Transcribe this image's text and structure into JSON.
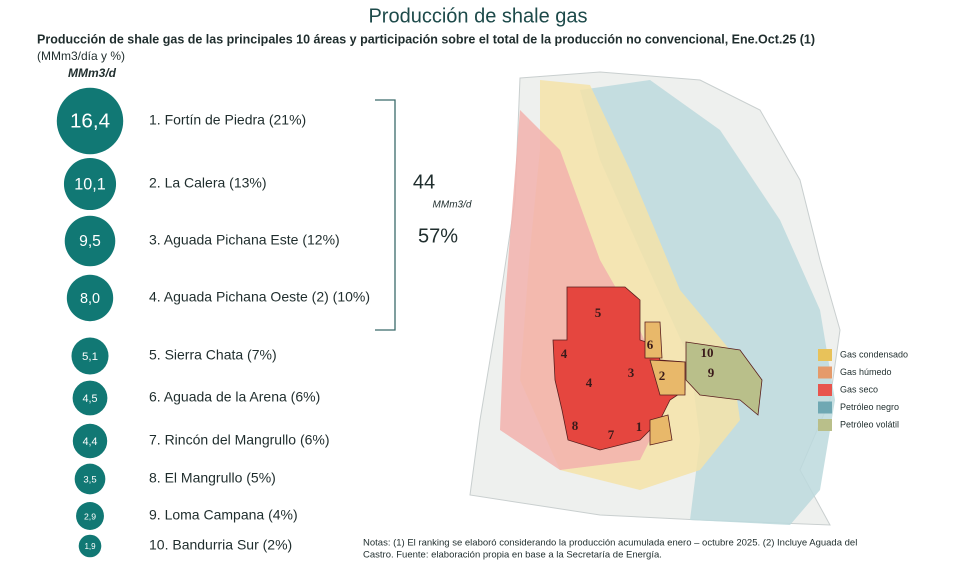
{
  "chart_data": {
    "type": "bubble",
    "title": "Producción de shale gas",
    "subtitle": "Producción de shale gas de las principales 10 áreas y participación sobre el total de la producción no convencional, Ene.Oct.25 (1)",
    "unit": "(MMm3/día y %)",
    "size_label": "MMm3/d",
    "color": "#117874",
    "categories": [
      "1. Fortín de Piedra (21%)",
      "2. La Calera (13%)",
      "3. Aguada Pichana Este (12%)",
      "4. Aguada Pichana Oeste (2) (10%)",
      "5. Sierra Chata (7%)",
      "6. Aguada de la Arena (6%)",
      "7. Rincón del Mangrullo (6%)",
      "8. El Mangrullo (5%)",
      "9. Loma Campana (4%)",
      "10. Bandurria Sur (2%)"
    ],
    "values": [
      16.4,
      10.1,
      9.5,
      8.0,
      5.1,
      4.5,
      4.4,
      3.5,
      2.9,
      1.9
    ],
    "value_labels": [
      "16,4",
      "10,1",
      "9,5",
      "8,0",
      "5,1",
      "4,5",
      "4,4",
      "3,5",
      "2,9",
      "1,9"
    ],
    "summary": {
      "value": "44",
      "unit": "MMm3/d",
      "share": "57%"
    }
  },
  "map": {
    "labels": [
      "5",
      "6",
      "10",
      "4",
      "3",
      "2",
      "9",
      "4",
      "8",
      "7",
      "1"
    ],
    "legend": [
      {
        "name": "Gas condensado",
        "color": "#e8c25a"
      },
      {
        "name": "Gas húmedo",
        "color": "#e59a6a"
      },
      {
        "name": "Gas seco",
        "color": "#e8554e"
      },
      {
        "name": "Petróleo negro",
        "color": "#6fa8b3"
      },
      {
        "name": "Petróleo volátil",
        "color": "#b9bf8a"
      }
    ]
  },
  "note": [
    "Notas: (1) El ranking se elaboró considerando la producción acumulada enero – octubre 2025. (2) Incluye Aguada del",
    "Castro. Fuente: elaboración propia en base a la Secretaría de Energía."
  ]
}
